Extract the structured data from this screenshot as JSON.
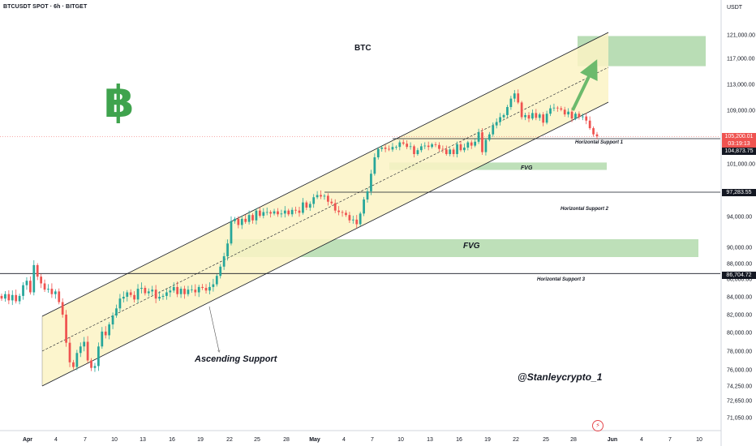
{
  "header": {
    "symbol_title": "BTCUSDT SPOT · 6h · BITGET",
    "currency": "USDT",
    "watermark": "@Stanleycrypto_1"
  },
  "icons": {
    "btc_logo": "bitcoin-sign-icon",
    "alert": "lightning-icon"
  },
  "colors": {
    "up": "#26a69a",
    "down": "#ef5350",
    "fvg": "#a8d5a2",
    "channel": "#fbf3c4",
    "target": "#a8d5a2",
    "btc_green": "#3fa34d"
  },
  "chart_data": {
    "type": "candlestick",
    "title": "BTC",
    "symbol": "BTCUSDT SPOT",
    "timeframe": "6h",
    "exchange": "BITGET",
    "currency": "USDT",
    "ylim": [
      69500,
      124000
    ],
    "y_ticks": [
      "121,000.00",
      "117,000.00",
      "113,000.00",
      "109,000.00",
      "101,000.00",
      "94,000.00",
      "90,000.00",
      "88,000.00",
      "86,000.00",
      "84,000.00",
      "82,000.00",
      "80,000.00",
      "78,000.00",
      "76,000.00",
      "74,250.00",
      "72,650.00",
      "71,050.00"
    ],
    "x_ticks": [
      "Apr",
      "4",
      "7",
      "10",
      "13",
      "16",
      "19",
      "22",
      "25",
      "28",
      "May",
      "4",
      "7",
      "10",
      "13",
      "16",
      "19",
      "22",
      "25",
      "28",
      "Jun",
      "4",
      "7",
      "10"
    ],
    "price_badges": [
      {
        "value": "105,200.01",
        "color": "#ef5350"
      },
      {
        "value": "03:19:13",
        "color": "#ef5350"
      },
      {
        "value": "104,873.75",
        "color": "#131722"
      },
      {
        "value": "97,283.55",
        "color": "#131722"
      },
      {
        "value": "86,704.72",
        "color": "#131722"
      }
    ],
    "horizontal_levels": [
      {
        "label": "Horizontal Support 1",
        "value": 104873.75
      },
      {
        "label": "Horizontal Support 2",
        "value": 97283.55
      },
      {
        "label": "Horizontal Support 3",
        "value": 86704.72
      }
    ],
    "fvg_zones": [
      {
        "label": "FVG",
        "low": 100200,
        "high": 101200
      },
      {
        "label": "FVG",
        "low": 88500,
        "high": 91000
      }
    ],
    "target_zone": {
      "low": 115800,
      "high": 120800
    },
    "channel_label": "Ascending Support",
    "closes": [
      83800,
      84300,
      83600,
      84200,
      83500,
      84100,
      85300,
      85800,
      84500,
      87800,
      86300,
      85500,
      84800,
      84900,
      84300,
      84600,
      83400,
      82000,
      78900,
      76800,
      76300,
      77800,
      78500,
      79000,
      77000,
      76200,
      76400,
      78500,
      80100,
      79700,
      80900,
      81900,
      82700,
      83800,
      84000,
      84500,
      84200,
      83700,
      84900,
      85000,
      84400,
      84600,
      84800,
      83800,
      84000,
      84100,
      84500,
      84700,
      85100,
      84300,
      84900,
      84300,
      84800,
      84800,
      84500,
      85100,
      85000,
      84700,
      85100,
      85400,
      86400,
      87600,
      88900,
      90500,
      93400,
      93700,
      92900,
      93700,
      93300,
      94200,
      93500,
      94800,
      94100,
      94600,
      94600,
      94400,
      94700,
      94300,
      94400,
      94800,
      94300,
      94900,
      94800,
      94500,
      95900,
      95200,
      95700,
      96600,
      96900,
      96700,
      96800,
      96000,
      95800,
      94800,
      94600,
      94500,
      94200,
      93500,
      93600,
      93000,
      94400,
      96300,
      97400,
      99700,
      102000,
      103300,
      103500,
      103300,
      103200,
      103600,
      103600,
      104300,
      104100,
      103600,
      103700,
      102500,
      103100,
      103700,
      103800,
      103600,
      104000,
      103900,
      103300,
      103200,
      102500,
      103200,
      102500,
      104000,
      103100,
      103500,
      104300,
      103800,
      104400,
      105800,
      102800,
      104700,
      105500,
      106800,
      107300,
      108000,
      108300,
      109500,
      110800,
      111600,
      110200,
      108000,
      108300,
      107800,
      108600,
      107900,
      108400,
      107200,
      108500,
      109300,
      109400,
      109300,
      109100,
      108400,
      108800,
      107800,
      108500,
      108000,
      108100,
      107500,
      106400,
      105500,
      105200
    ]
  }
}
